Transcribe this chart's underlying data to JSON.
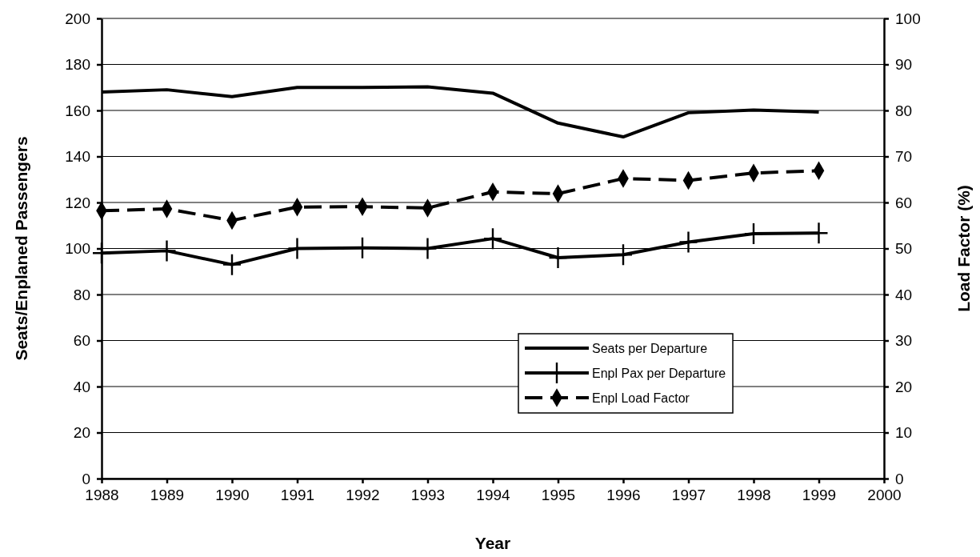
{
  "chart_data": {
    "type": "line",
    "xlabel": "Year",
    "ylabel": "Seats/Enplaned Passengers",
    "y2label": "Load Factor (%)",
    "x": [
      1988,
      1989,
      1990,
      1991,
      1992,
      1993,
      1994,
      1995,
      1996,
      1997,
      1998,
      1999
    ],
    "xlim": [
      1988,
      2000
    ],
    "xticks": [
      1988,
      1989,
      1990,
      1991,
      1992,
      1993,
      1994,
      1995,
      1996,
      1997,
      1998,
      1999,
      2000
    ],
    "ylim": [
      0,
      200
    ],
    "yticks": [
      0,
      20,
      40,
      60,
      80,
      100,
      120,
      140,
      160,
      180,
      200
    ],
    "y2lim": [
      0,
      100
    ],
    "y2ticks": [
      0,
      10,
      20,
      30,
      40,
      50,
      60,
      70,
      80,
      90,
      100
    ],
    "grid": "y",
    "legend": "bottom right",
    "series": [
      {
        "name": "Seats per Departure",
        "color": "#000000",
        "marker": "none",
        "line_style": "solid",
        "values": [
          168,
          169,
          166,
          170,
          170,
          170.3,
          167.5,
          154.5,
          148.5,
          159,
          160.2,
          159.3
        ]
      },
      {
        "name": "Enpl Pax per Departure",
        "color": "#000000",
        "marker": "cross",
        "line_style": "solid",
        "values": [
          98,
          99,
          93,
          100,
          100.3,
          100,
          104.3,
          96,
          97.3,
          102.8,
          106.4,
          106.7
        ]
      },
      {
        "name": "Enpl Load Factor",
        "color": "#000000",
        "marker": "diamond",
        "line_style": "dashed",
        "axis": "y2",
        "values": [
          58.2,
          58.6,
          56.1,
          59,
          59.1,
          58.8,
          62.3,
          61.9,
          65.2,
          64.8,
          66.4,
          66.9
        ]
      }
    ]
  }
}
